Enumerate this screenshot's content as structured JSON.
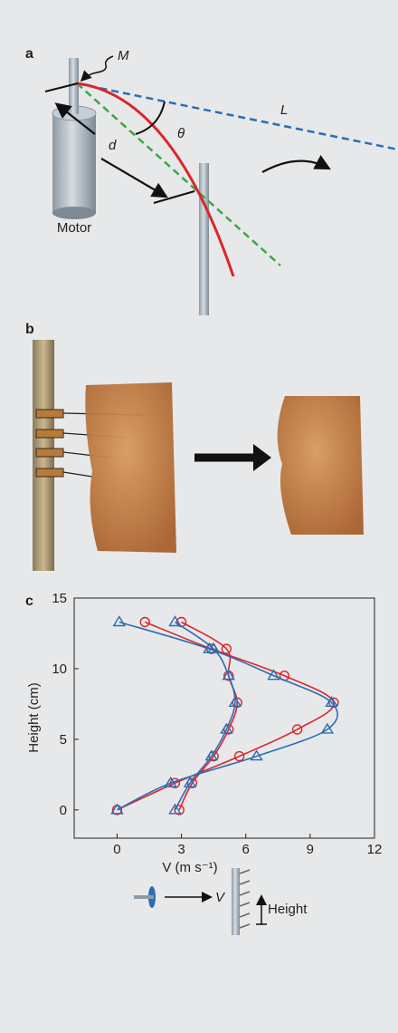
{
  "panel_a": {
    "label": "a",
    "m": "M",
    "l": "L",
    "theta": "θ",
    "d": "d",
    "motor": "Motor"
  },
  "panel_b": {
    "label": "b"
  },
  "panel_c": {
    "label": "c"
  },
  "chart_data": {
    "type": "line",
    "xlabel": "V (m s⁻¹)",
    "ylabel": "Height (cm)",
    "xlim": [
      -2,
      12
    ],
    "ylim": [
      -2,
      15
    ],
    "xticks": [
      0,
      3,
      6,
      9,
      12
    ],
    "yticks": [
      0,
      5,
      10,
      15
    ],
    "series": [
      {
        "color": "#d9262c",
        "marker": "circle",
        "x": [
          0,
          2.7,
          5.7,
          8.4,
          10.1,
          7.8,
          4.4,
          1.3
        ],
        "values": [
          0,
          1.9,
          3.8,
          5.7,
          7.6,
          9.5,
          11.4,
          13.3
        ]
      },
      {
        "color": "#d9262c",
        "marker": "circle",
        "x": [
          2.9,
          3.5,
          4.5,
          5.2,
          5.6,
          5.2,
          5.1,
          3.0
        ],
        "values": [
          0,
          1.9,
          3.8,
          5.7,
          7.6,
          9.5,
          11.4,
          13.3
        ]
      },
      {
        "color": "#2a6db5",
        "marker": "triangle",
        "x": [
          0,
          2.5,
          6.5,
          9.8,
          10.0,
          7.3,
          4.3,
          0.1
        ],
        "values": [
          0,
          1.9,
          3.8,
          5.7,
          7.6,
          9.5,
          11.4,
          13.3
        ]
      },
      {
        "color": "#2a6db5",
        "marker": "triangle",
        "x": [
          2.7,
          3.4,
          4.4,
          5.1,
          5.5,
          5.2,
          4.5,
          2.7
        ],
        "values": [
          0,
          1.9,
          3.8,
          5.7,
          7.6,
          9.5,
          11.4,
          13.3
        ]
      }
    ]
  },
  "key": {
    "velocity": "V",
    "height": "Height"
  }
}
